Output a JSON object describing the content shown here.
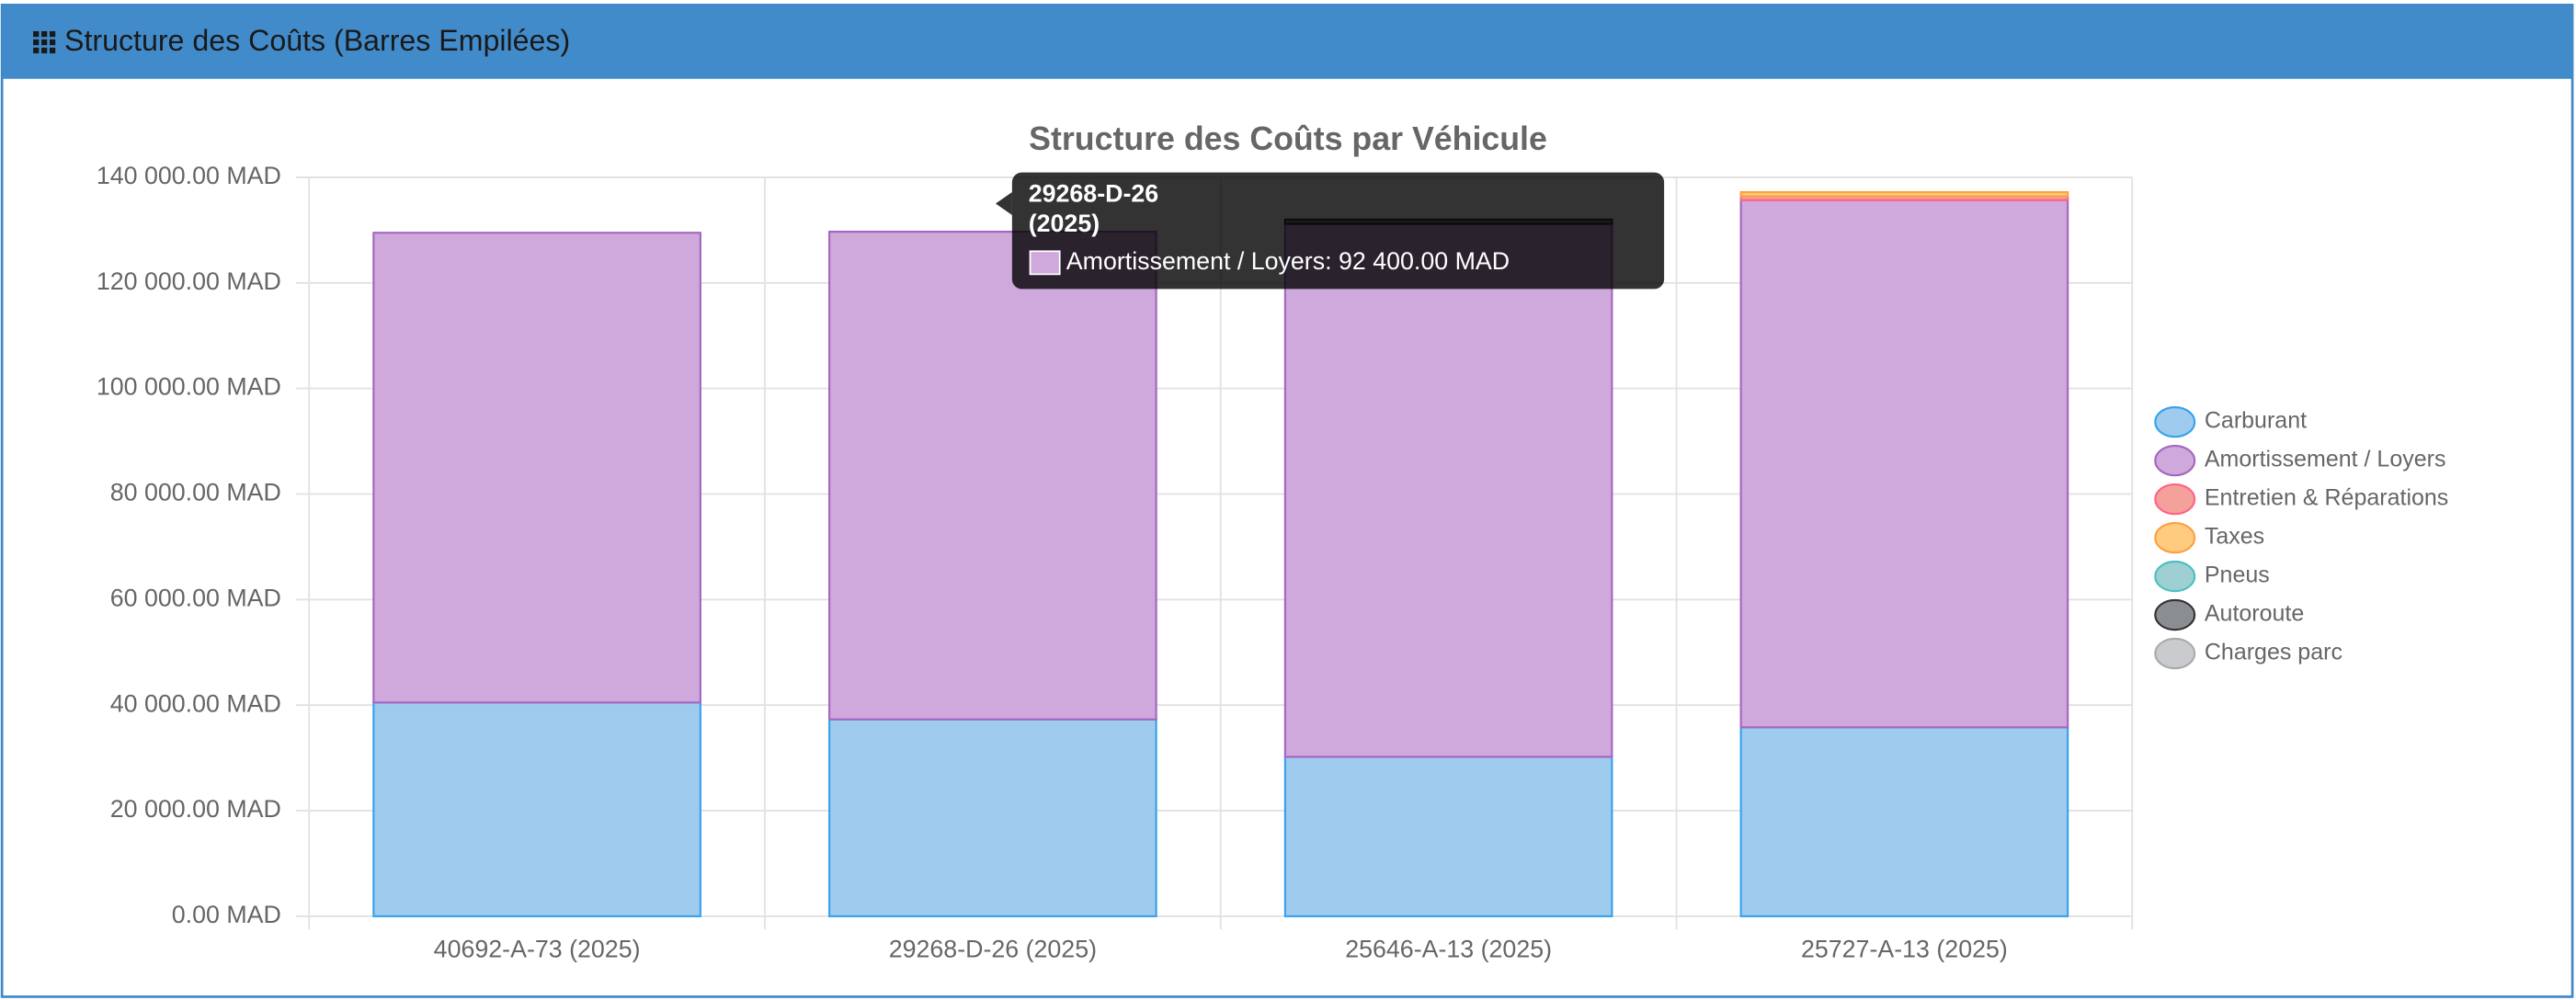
{
  "header": {
    "title": "Structure des Coûts (Barres Empilées)"
  },
  "chart_data": {
    "type": "stacked-bar",
    "title": "Structure des Coûts par Véhicule",
    "categories": [
      "40692-A-73 (2025)",
      "29268-D-26 (2025)",
      "25646-A-13 (2025)",
      "25727-A-13 (2025)"
    ],
    "series": [
      {
        "name": "Carburant",
        "color": "#9fcbee",
        "border": "#36a2eb",
        "values": [
          40500,
          37300,
          30200,
          35800
        ]
      },
      {
        "name": "Amortissement / Loyers",
        "color": "#cfa8dc",
        "border": "#a566c0",
        "values": [
          89000,
          92400,
          101000,
          99900
        ]
      },
      {
        "name": "Entretien & Réparations",
        "color": "#f4a09b",
        "border": "#ff6384",
        "values": [
          0,
          0,
          0,
          700
        ]
      },
      {
        "name": "Taxes",
        "color": "#fecb7f",
        "border": "#ff9f40",
        "values": [
          0,
          0,
          0,
          800
        ]
      },
      {
        "name": "Pneus",
        "color": "#9dcfd3",
        "border": "#4bc0c0",
        "values": [
          0,
          0,
          0,
          0
        ]
      },
      {
        "name": "Autoroute",
        "color": "#8a8d92",
        "border": "#333333",
        "values": [
          0,
          0,
          800,
          0
        ]
      },
      {
        "name": "Charges parc",
        "color": "#c9cbcf",
        "border": "#aaaaaa",
        "values": [
          0,
          0,
          0,
          0
        ]
      }
    ],
    "ylim": [
      0,
      140000
    ],
    "yticks": [
      {
        "value": 0,
        "label": "0.00 MAD"
      },
      {
        "value": 20000,
        "label": "20 000.00 MAD"
      },
      {
        "value": 40000,
        "label": "40 000.00 MAD"
      },
      {
        "value": 60000,
        "label": "60 000.00 MAD"
      },
      {
        "value": 80000,
        "label": "80 000.00 MAD"
      },
      {
        "value": 100000,
        "label": "100 000.00 MAD"
      },
      {
        "value": 120000,
        "label": "120 000.00 MAD"
      },
      {
        "value": 140000,
        "label": "140 000.00 MAD"
      }
    ],
    "grid": true,
    "legend": "right",
    "tooltip": {
      "title_lines": [
        "29268-D-26",
        "(2025)"
      ],
      "text": "Amortissement / Loyers: 92 400.00 MAD"
    }
  }
}
